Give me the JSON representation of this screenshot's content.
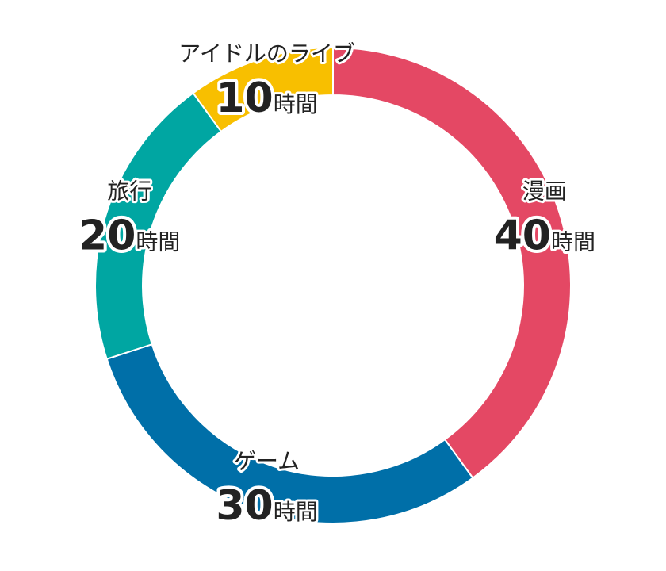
{
  "chart_data": {
    "type": "pie",
    "donut": true,
    "unit": "時間",
    "categories": [
      "漫画",
      "ゲーム",
      "旅行",
      "アイドルのライブ"
    ],
    "values": [
      40,
      30,
      20,
      10
    ],
    "colors": [
      "#e44864",
      "#006fa8",
      "#00a6a2",
      "#f8bf00"
    ],
    "legend": "none",
    "title": ""
  }
}
